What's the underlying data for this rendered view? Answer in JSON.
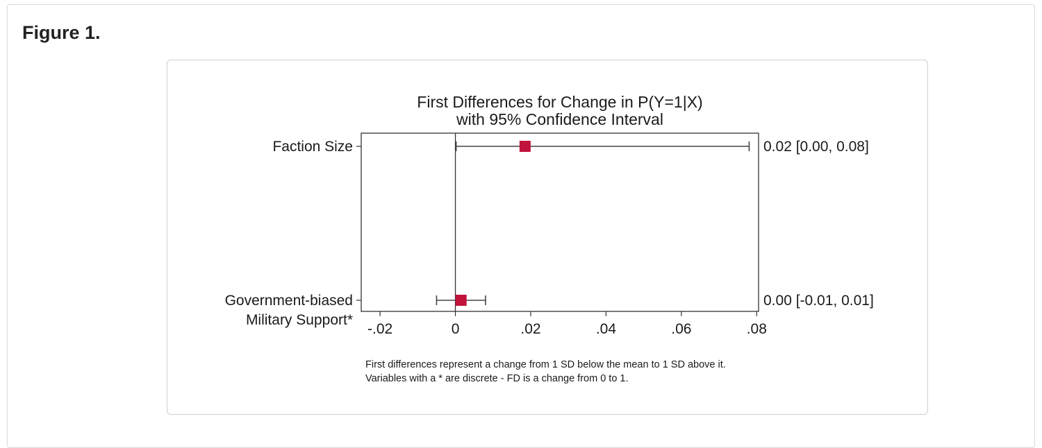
{
  "page": {
    "figure_label": "Figure 1."
  },
  "chart_data": {
    "type": "scatter",
    "title_lines": [
      "First Differences for Change in P(Y=1|X)",
      "with 95% Confidence Interval"
    ],
    "xlim": [
      -0.025,
      0.0805
    ],
    "x_ticks": [
      -0.02,
      0,
      0.02,
      0.04,
      0.06,
      0.08
    ],
    "x_tick_labels": [
      "-.02",
      "0",
      ".02",
      ".04",
      ".06",
      ".08"
    ],
    "reference_line_x": 0,
    "points": [
      {
        "label_lines": [
          "Faction Size"
        ],
        "estimate": 0.0185,
        "ci_low": 0.0002,
        "ci_high": 0.078,
        "value_label": "0.02 [0.00, 0.08]"
      },
      {
        "label_lines": [
          "Government-biased",
          "Military Support*"
        ],
        "estimate": 0.0015,
        "ci_low": -0.005,
        "ci_high": 0.008,
        "value_label": "0.00 [-0.01, 0.01]"
      }
    ],
    "notes": [
      "First differences represent a change from 1 SD below the mean to 1 SD above it.",
      "Variables with a * are discrete - FD is a change from 0 to 1."
    ],
    "marker_color": "#c0143c",
    "grid": false,
    "legend": "none"
  }
}
